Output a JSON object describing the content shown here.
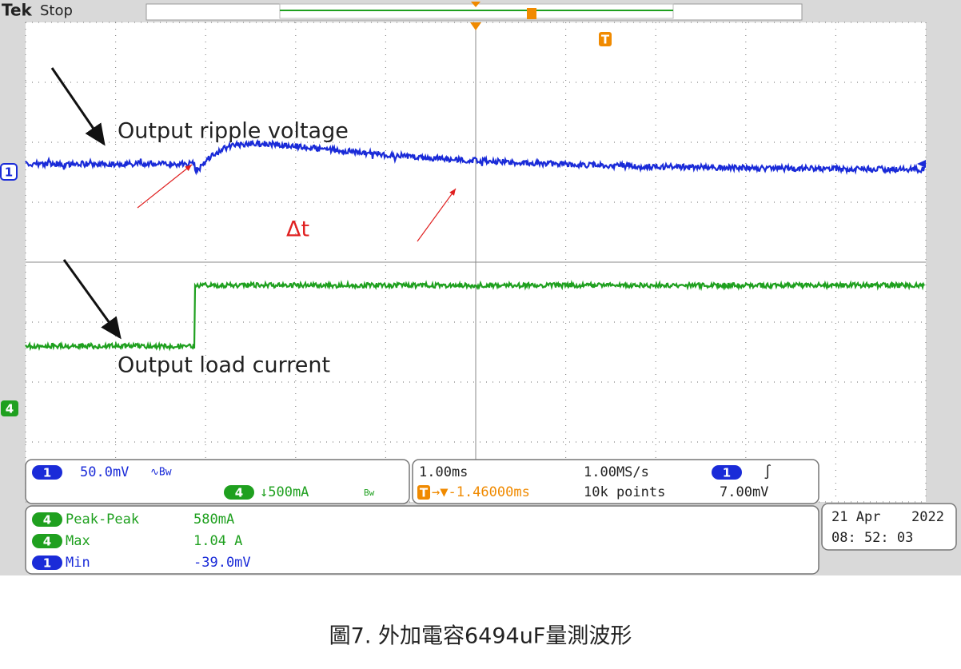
{
  "header": {
    "brand": "Tek",
    "status": "Stop"
  },
  "markers": {
    "ch1": "1",
    "ch4": "4",
    "trigger": "T"
  },
  "annotations": {
    "ripple": "Output ripple voltage",
    "delta": "Δt",
    "load": "Output load current"
  },
  "channel_panel": {
    "ch1_badge": "1",
    "ch1_scale": "50.0mV",
    "ch1_coupling": "∿Bw",
    "ch4_badge": "4",
    "ch4_scale": "↓500mA",
    "ch4_coupling": "Bw"
  },
  "timebase_panel": {
    "horizontal": "1.00ms",
    "position_badge": "T",
    "position": "→▼-1.46000ms",
    "sample_rate": "1.00MS/s",
    "record": "10k points",
    "trigger_badge": "1",
    "trigger_slope": "∫",
    "trigger_level": "7.00mV"
  },
  "measurements": [
    {
      "channel": "4",
      "label": "Peak-Peak",
      "value": "580mA"
    },
    {
      "channel": "4",
      "label": "Max",
      "value": "1.04 A"
    },
    {
      "channel": "1",
      "label": "Min",
      "value": "-39.0mV"
    }
  ],
  "datetime": {
    "date": "21 Apr",
    "year": "2022",
    "time": "08: 52: 03"
  },
  "caption": "圖7. 外加電容6494uF量測波形"
}
